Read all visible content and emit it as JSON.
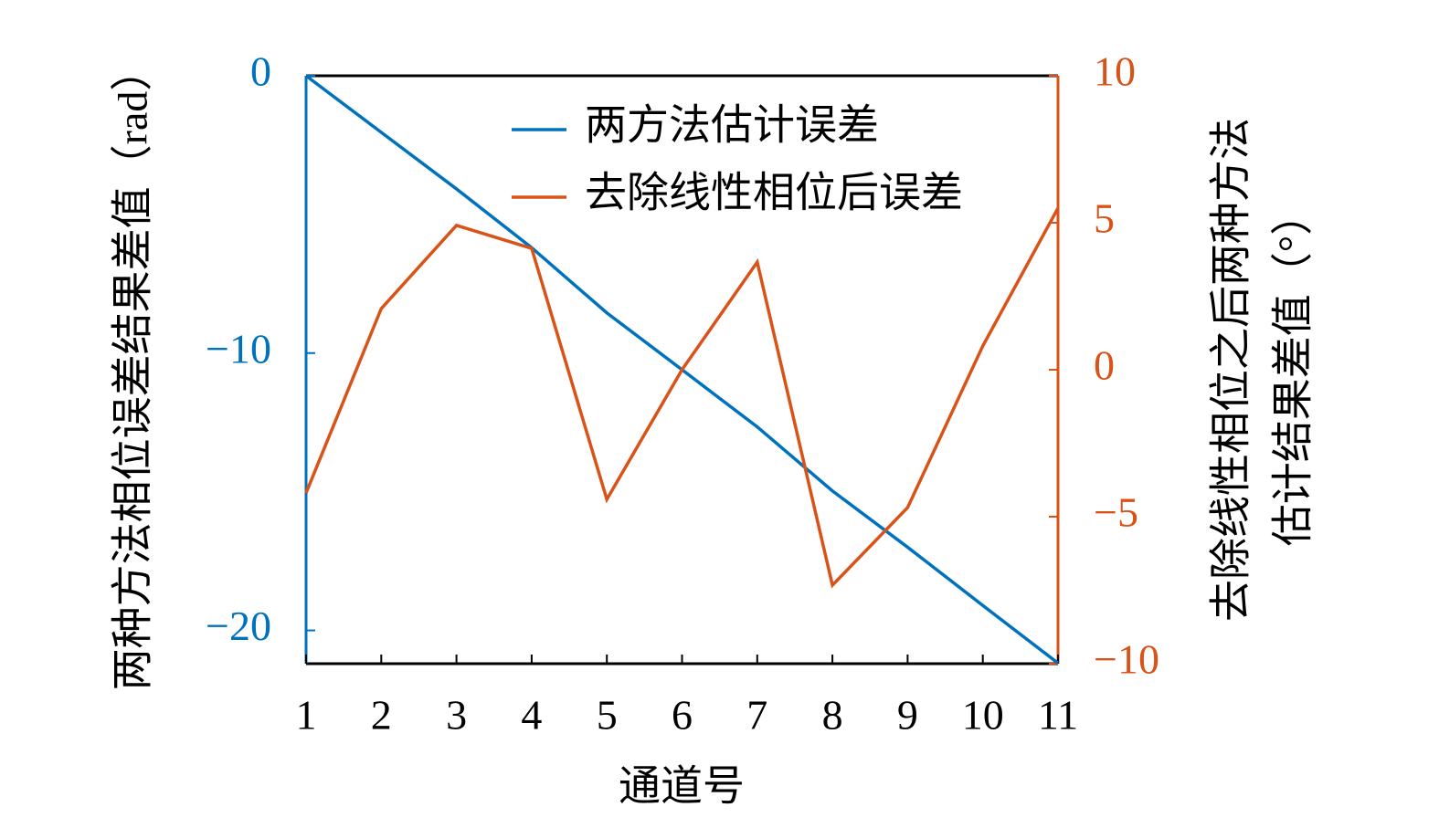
{
  "chart_data": {
    "type": "line",
    "xlabel": "通道号",
    "ylabel": "两种方法相位误差结果差值（rad）",
    "y2label": [
      "去除线性相位之后两种方法",
      "估计结果差值（°）"
    ],
    "x": [
      1,
      2,
      3,
      4,
      5,
      6,
      7,
      8,
      9,
      10,
      11
    ],
    "xlim": [
      1,
      11
    ],
    "xticks": [
      1,
      2,
      3,
      4,
      5,
      6,
      7,
      8,
      9,
      10,
      11
    ],
    "ylim": [
      -21.2,
      0
    ],
    "yticks": [
      {
        "value": -20,
        "label": "−20"
      },
      {
        "value": -10,
        "label": "−10"
      },
      0
    ],
    "y2lim": [
      -10,
      10
    ],
    "y2ticks": [
      {
        "value": -10,
        "label": "−10"
      },
      {
        "value": -5,
        "label": "−5"
      },
      0,
      5,
      10
    ],
    "legend": "upper right",
    "series": [
      {
        "name": "两方法估计误差",
        "color": "#0072bd",
        "values": [
          0,
          -2.04,
          -4.08,
          -6.2,
          -8.55,
          -10.6,
          -12.66,
          -14.97,
          -17.0,
          -19.1,
          -21.18
        ]
      },
      {
        "name": "去除线性相位后误差",
        "color": "#d95319",
        "axis": "y2",
        "values": [
          -4.19,
          2.08,
          4.91,
          4.13,
          -4.41,
          0,
          3.66,
          -7.33,
          -4.69,
          0.81,
          5.5
        ]
      }
    ]
  }
}
